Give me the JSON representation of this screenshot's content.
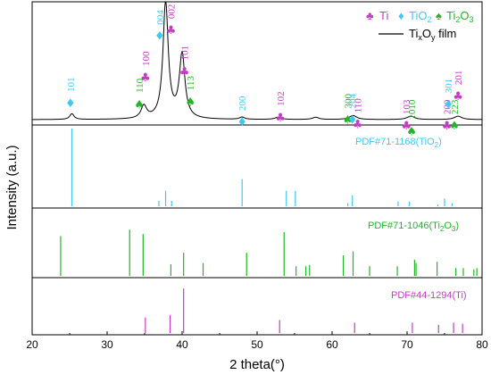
{
  "chart_data": {
    "type": "line",
    "xlabel": "2 theta(°)",
    "ylabel": "Intensity (a.u.)",
    "xlim": [
      20,
      80
    ],
    "x_ticks": [
      20,
      30,
      40,
      50,
      60,
      70,
      80
    ],
    "colors": {
      "film": "#000000",
      "TiO2": "#3fc8f0",
      "Ti2O3": "#22b526",
      "Ti": "#c43cc4"
    },
    "legend": {
      "placement": "top-right",
      "Ti_symbol": "♣",
      "Ti": "Ti",
      "TiO2_symbol": "♦",
      "TiO2": "TiO",
      "TiO2_sub": "2",
      "Ti2O3_symbol": "♠",
      "Ti2O3": "Ti",
      "Ti2O3_sub1": "2",
      "Ti2O3_mid": "O",
      "Ti2O3_sub2": "3",
      "film_a": "Ti",
      "film_sub_x": "x",
      "film_b": "O",
      "film_sub_y": "y",
      "film_c": " film"
    },
    "film_pattern": {
      "baseline": 0.03,
      "peaks": [
        {
          "x": 25.3,
          "h": 0.05,
          "w": 0.35
        },
        {
          "x": 34.9,
          "h": 0.11,
          "w": 0.45
        },
        {
          "x": 37.8,
          "h": 1.02,
          "w": 0.42
        },
        {
          "x": 40.0,
          "h": 0.56,
          "w": 0.45
        },
        {
          "x": 48.0,
          "h": 0.02,
          "w": 0.4
        },
        {
          "x": 52.8,
          "h": 0.02,
          "w": 0.5
        },
        {
          "x": 57.8,
          "h": 0.02,
          "w": 0.5
        },
        {
          "x": 62.8,
          "h": 0.035,
          "w": 0.6
        },
        {
          "x": 70.5,
          "h": 0.03,
          "w": 0.6
        },
        {
          "x": 76.8,
          "h": 0.03,
          "w": 0.6
        }
      ]
    },
    "annotations": [
      {
        "x": 25.1,
        "top": 0.36,
        "symbol": "♦",
        "phase": "TiO2",
        "label": "101"
      },
      {
        "x": 34.3,
        "top": 0.35,
        "symbol": "♠",
        "phase": "Ti2O3",
        "label": "110"
      },
      {
        "x": 35.1,
        "top": 0.58,
        "symbol": "♣",
        "phase": "Ti",
        "label": "100"
      },
      {
        "x": 37.0,
        "top": 0.93,
        "symbol": "♦",
        "phase": "TiO2",
        "label": "004"
      },
      {
        "x": 38.5,
        "top": 0.98,
        "symbol": "♣",
        "phase": "Ti",
        "label": "002"
      },
      {
        "x": 40.3,
        "top": 0.63,
        "symbol": "♣",
        "phase": "Ti",
        "label": "101"
      },
      {
        "x": 41.1,
        "top": 0.37,
        "symbol": "♠",
        "phase": "Ti2O3",
        "label": "113"
      },
      {
        "x": 48.0,
        "top": 0.2,
        "symbol": "♦",
        "phase": "TiO2",
        "label": "200"
      },
      {
        "x": 53.1,
        "top": 0.24,
        "symbol": "♣",
        "phase": "Ti",
        "label": "102"
      },
      {
        "x": 62.1,
        "top": 0.22,
        "symbol": "♠",
        "phase": "Ti2O3",
        "label": "300"
      },
      {
        "x": 62.7,
        "top": 0.22,
        "symbol": "♦",
        "phase": "TiO2",
        "label": "204"
      },
      {
        "x": 63.4,
        "top": 0.18,
        "symbol": "♣",
        "phase": "Ti",
        "label": "110"
      },
      {
        "x": 69.9,
        "top": 0.17,
        "symbol": "♣",
        "phase": "Ti",
        "label": "103"
      },
      {
        "x": 70.6,
        "top": 0.17,
        "symbol": "♠",
        "phase": "Ti2O3",
        "label": "1010"
      },
      {
        "x": 75.3,
        "top": 0.17,
        "symbol": "♣",
        "phase": "Ti",
        "label": "200"
      },
      {
        "x": 75.5,
        "top": 0.35,
        "symbol": "♦",
        "phase": "TiO2",
        "label": "301"
      },
      {
        "x": 76.3,
        "top": 0.17,
        "symbol": "♠",
        "phase": "Ti2O3",
        "label": "223"
      },
      {
        "x": 76.8,
        "top": 0.42,
        "symbol": "♣",
        "phase": "Ti",
        "label": "201"
      }
    ],
    "reference_panels": [
      {
        "label": "PDF#71-1168(TiO",
        "label_sub": "2",
        "label_end": ")",
        "phase": "TiO2",
        "lines": [
          {
            "x": 25.3,
            "h": 1.0
          },
          {
            "x": 36.9,
            "h": 0.07
          },
          {
            "x": 37.8,
            "h": 0.2
          },
          {
            "x": 38.6,
            "h": 0.07
          },
          {
            "x": 48.0,
            "h": 0.35
          },
          {
            "x": 53.9,
            "h": 0.2
          },
          {
            "x": 55.1,
            "h": 0.2
          },
          {
            "x": 62.1,
            "h": 0.04
          },
          {
            "x": 62.7,
            "h": 0.14
          },
          {
            "x": 68.8,
            "h": 0.06
          },
          {
            "x": 70.3,
            "h": 0.06
          },
          {
            "x": 74.1,
            "h": 0.02
          },
          {
            "x": 75.0,
            "h": 0.1
          },
          {
            "x": 76.0,
            "h": 0.04
          }
        ]
      },
      {
        "label": "PDF#71-1046(Ti",
        "label_sub": "2",
        "label_mid": "O",
        "label_sub2": "3",
        "label_end": ")",
        "phase": "Ti2O3",
        "lines": [
          {
            "x": 23.8,
            "h": 0.62
          },
          {
            "x": 33.0,
            "h": 0.72
          },
          {
            "x": 34.8,
            "h": 0.65
          },
          {
            "x": 38.5,
            "h": 0.18
          },
          {
            "x": 40.2,
            "h": 0.36
          },
          {
            "x": 42.8,
            "h": 0.2
          },
          {
            "x": 48.6,
            "h": 0.36
          },
          {
            "x": 53.6,
            "h": 0.68
          },
          {
            "x": 55.2,
            "h": 0.15
          },
          {
            "x": 56.5,
            "h": 0.15
          },
          {
            "x": 57.0,
            "h": 0.17
          },
          {
            "x": 61.5,
            "h": 0.32
          },
          {
            "x": 62.8,
            "h": 0.38
          },
          {
            "x": 65.0,
            "h": 0.15
          },
          {
            "x": 68.7,
            "h": 0.15
          },
          {
            "x": 71.0,
            "h": 0.25
          },
          {
            "x": 71.2,
            "h": 0.2
          },
          {
            "x": 74.0,
            "h": 0.22
          },
          {
            "x": 76.5,
            "h": 0.12
          },
          {
            "x": 77.5,
            "h": 0.12
          },
          {
            "x": 78.9,
            "h": 0.1
          },
          {
            "x": 79.3,
            "h": 0.12
          }
        ]
      },
      {
        "label": "PDF#44-1294(Ti)",
        "phase": "Ti",
        "lines": [
          {
            "x": 35.1,
            "h": 0.3
          },
          {
            "x": 38.4,
            "h": 0.35
          },
          {
            "x": 40.2,
            "h": 0.86
          },
          {
            "x": 53.0,
            "h": 0.25
          },
          {
            "x": 63.0,
            "h": 0.2
          },
          {
            "x": 70.7,
            "h": 0.2
          },
          {
            "x": 74.2,
            "h": 0.16
          },
          {
            "x": 76.2,
            "h": 0.2
          },
          {
            "x": 77.4,
            "h": 0.18
          }
        ]
      }
    ]
  }
}
